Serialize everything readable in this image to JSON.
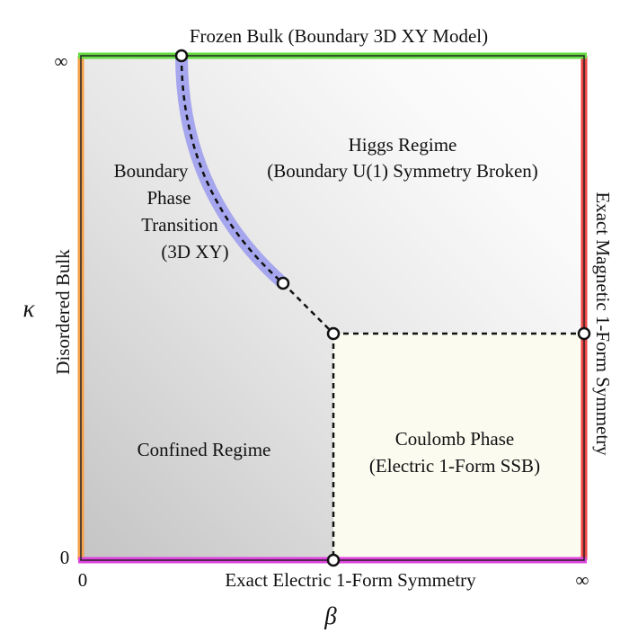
{
  "diagram": {
    "top_boundary_label": "Frozen Bulk (Boundary 3D XY Model)",
    "left_boundary_label": "Disordered Bulk",
    "right_boundary_label": "Exact Magnetic 1-Form Symmetry",
    "bottom_boundary_label": "Exact Electric 1-Form Symmetry",
    "higgs_label": [
      "Higgs Regime",
      "(Boundary U(1) Symmetry Broken)"
    ],
    "transition_label": [
      "Boundary",
      "Phase",
      "Transition",
      "(3D XY)"
    ],
    "confined_label": "Confined Regime",
    "coulomb_label": [
      "Coulomb Phase",
      "(Electric 1-Form SSB)"
    ]
  },
  "axes": {
    "x_symbol": "β",
    "y_symbol": "κ",
    "x_ticks": [
      "0",
      "∞"
    ],
    "y_ticks": [
      "0",
      "∞"
    ]
  },
  "colors": {
    "top_edge": "#66dd44",
    "left_edge": "#f5a04a",
    "right_edge": "#ee4444",
    "bottom_edge": "#dd44dd",
    "transition_band": "#a6a6ee",
    "coulomb_fill": "#fbfbf0",
    "dashed_line": "#111111"
  }
}
